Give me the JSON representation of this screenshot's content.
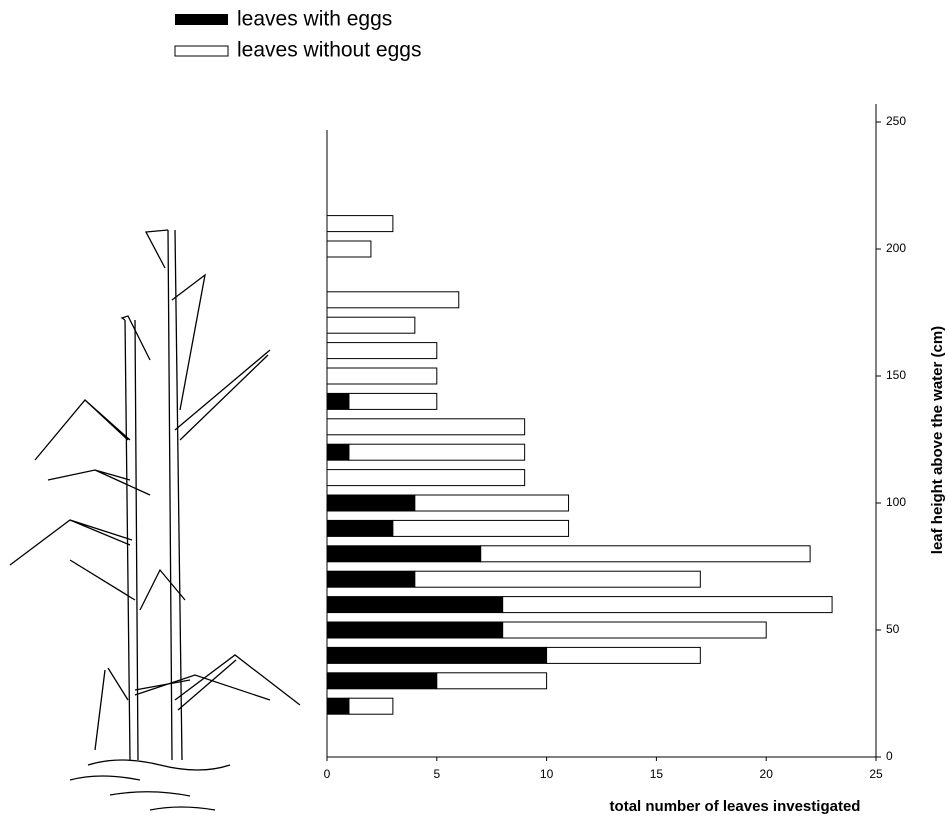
{
  "chart_data": {
    "type": "bar",
    "orientation": "horizontal",
    "stacked": true,
    "xlabel": "total number of leaves investigated",
    "ylabel": "leaf height above the water (cm)",
    "y": [
      20,
      30,
      40,
      50,
      60,
      70,
      80,
      90,
      100,
      110,
      120,
      130,
      140,
      150,
      160,
      170,
      180,
      190,
      200,
      210
    ],
    "series": [
      {
        "name": "leaves with eggs",
        "color": "#000000",
        "values": [
          1,
          5,
          10,
          8,
          8,
          4,
          7,
          3,
          4,
          0,
          1,
          0,
          1,
          0,
          0,
          0,
          0,
          0,
          0,
          0
        ]
      },
      {
        "name": "leaves without eggs",
        "color": "#ffffff",
        "values": [
          2,
          5,
          7,
          12,
          15,
          13,
          15,
          8,
          7,
          9,
          8,
          9,
          4,
          5,
          5,
          4,
          6,
          0,
          2,
          3
        ]
      }
    ],
    "xlim": [
      0,
      25
    ],
    "xticks": [
      0,
      5,
      10,
      15,
      20,
      25
    ],
    "ylim": [
      0,
      250
    ],
    "yticks": [
      0,
      50,
      100,
      150,
      200,
      250
    ],
    "y_axis_side": "right"
  }
}
